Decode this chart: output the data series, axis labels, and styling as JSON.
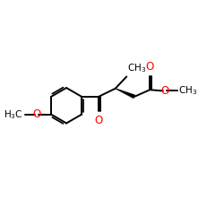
{
  "bg_color": "#ffffff",
  "bond_color": "#000000",
  "oxygen_color": "#ff0000",
  "line_width": 1.4,
  "figsize": [
    2.5,
    2.5
  ],
  "dpi": 100,
  "xlim": [
    0,
    10
  ],
  "ylim": [
    0,
    10
  ]
}
